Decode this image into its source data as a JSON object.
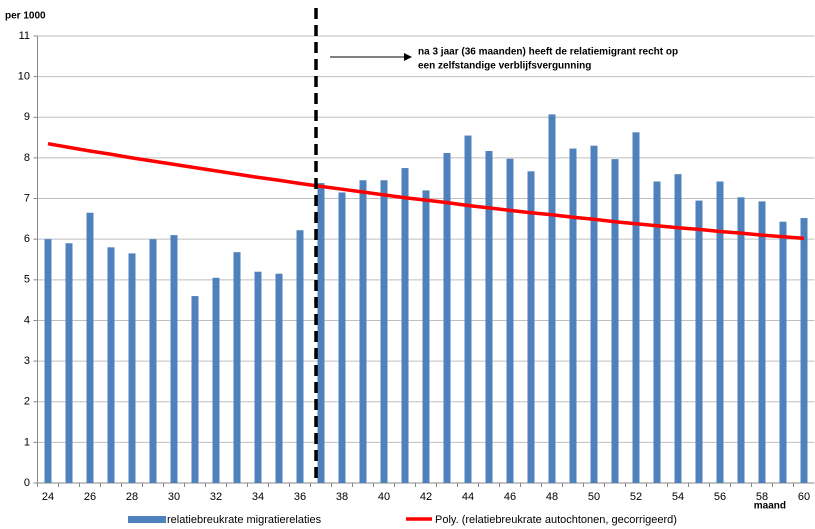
{
  "chart_data": {
    "type": "bar",
    "y_label": "per 1000",
    "x_label": "maand",
    "annotation": [
      "na 3 jaar (36 maanden) heeft de relatiemigrant recht op",
      "een zelfstandige verblijfsvergunning"
    ],
    "categories": [
      "24",
      null,
      "26",
      null,
      "28",
      null,
      "30",
      null,
      "32",
      null,
      "34",
      null,
      "36",
      null,
      "38",
      null,
      "40",
      null,
      "42",
      null,
      "44",
      null,
      "46",
      null,
      "48",
      null,
      "50",
      null,
      "52",
      null,
      "54",
      null,
      "56",
      null,
      "58",
      null,
      "60"
    ],
    "series": [
      {
        "name": "relatiebreukrate migratierelaties",
        "type": "bar",
        "color": "#4f81bd",
        "values": [
          6.0,
          5.9,
          6.65,
          5.8,
          5.65,
          6.0,
          6.1,
          4.6,
          5.05,
          5.68,
          5.2,
          5.15,
          6.22,
          7.38,
          7.15,
          7.45,
          7.45,
          7.75,
          7.2,
          8.12,
          8.55,
          8.17,
          7.98,
          7.67,
          9.07,
          8.23,
          8.3,
          7.97,
          8.63,
          7.42,
          7.6,
          6.95,
          7.42,
          7.03,
          6.93,
          6.43,
          6.52
        ]
      },
      {
        "name": "Poly. (relatiebreukrate autochtonen, gecorrigeerd)",
        "type": "line",
        "color": "#ff0000",
        "values": [
          8.35,
          8.26,
          8.17,
          8.09,
          8.0,
          7.92,
          7.84,
          7.76,
          7.68,
          7.6,
          7.52,
          7.45,
          7.37,
          7.3,
          7.23,
          7.16,
          7.09,
          7.02,
          6.96,
          6.9,
          6.83,
          6.77,
          6.71,
          6.65,
          6.6,
          6.54,
          6.49,
          6.43,
          6.38,
          6.33,
          6.28,
          6.24,
          6.19,
          6.15,
          6.1,
          6.06,
          6.02
        ]
      }
    ],
    "ylim": [
      0,
      11
    ],
    "yticks": [
      0,
      1,
      2,
      3,
      4,
      5,
      6,
      7,
      8,
      9,
      10,
      11
    ],
    "grid": true
  }
}
